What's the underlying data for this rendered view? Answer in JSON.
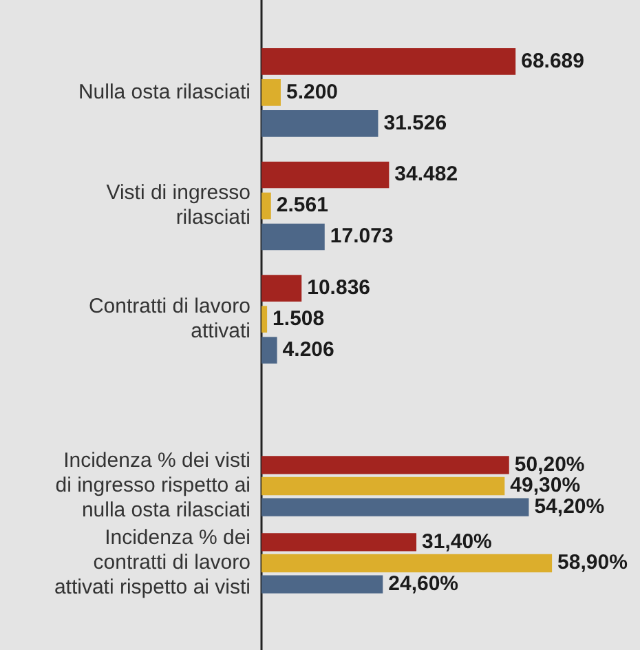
{
  "chart_data": [
    {
      "type": "bar",
      "orientation": "horizontal",
      "categories": [
        "Nulla osta rilasciati",
        "Visti di ingresso rilasciati",
        "Contratti di lavoro attivati"
      ],
      "tick_labels": "y",
      "legend": false,
      "series": [
        {
          "color": "#a3241f",
          "values": [
            68689,
            34482,
            10836
          ],
          "value_labels": [
            "68.689",
            "34.482",
            "10.836"
          ]
        },
        {
          "color": "#dcae2c",
          "values": [
            5200,
            2561,
            1508
          ],
          "value_labels": [
            "5.200",
            "2.561",
            "1.508"
          ]
        },
        {
          "color": "#4d6788",
          "values": [
            31526,
            17073,
            4206
          ],
          "value_labels": [
            "31.526",
            "17.073",
            "4.206"
          ]
        }
      ]
    },
    {
      "type": "bar",
      "orientation": "horizontal",
      "categories": [
        "Incidenza % dei visti di ingresso rispetto ai nulla osta rilasciati",
        "Incidenza % dei contratti di lavoro attivati rispetto ai visti"
      ],
      "tick_labels": "y",
      "legend": false,
      "series": [
        {
          "color": "#a3241f",
          "values": [
            50.2,
            31.4
          ],
          "value_labels": [
            "50,20%",
            "31,40%"
          ]
        },
        {
          "color": "#dcae2c",
          "values": [
            49.3,
            58.9
          ],
          "value_labels": [
            "49,30%",
            "58,90%"
          ]
        },
        {
          "color": "#4d6788",
          "values": [
            54.2,
            24.6
          ],
          "value_labels": [
            "54,20%",
            "24,60%"
          ]
        }
      ]
    }
  ]
}
